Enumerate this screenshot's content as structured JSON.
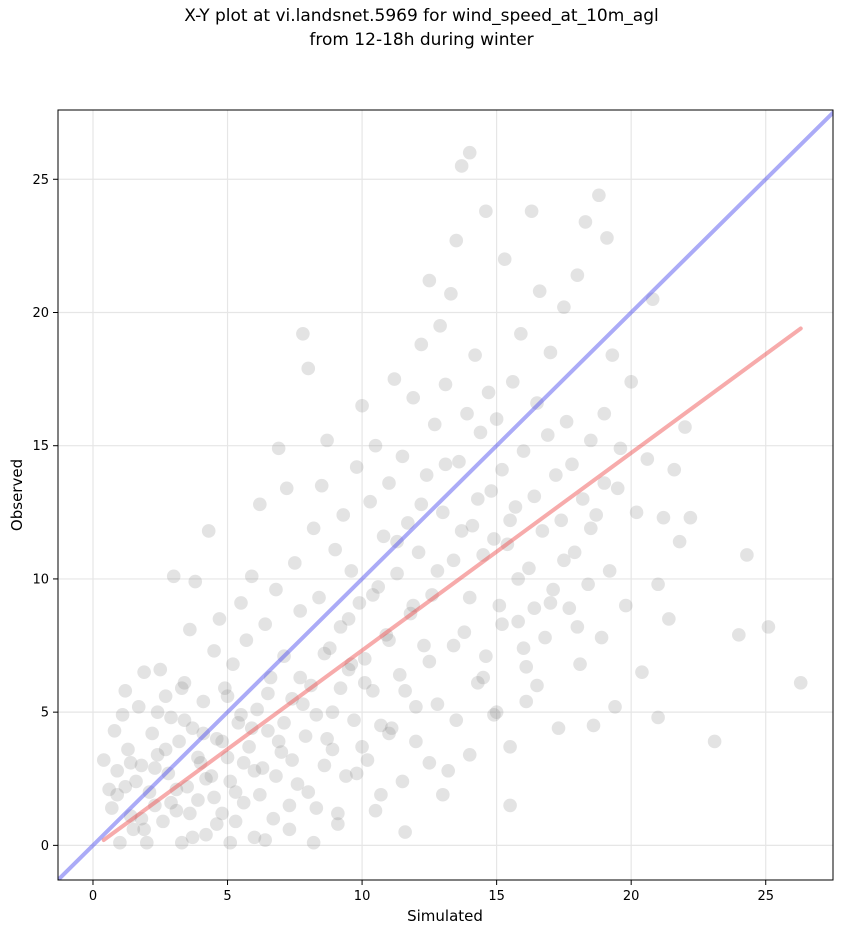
{
  "figure": {
    "title_line1": "X-Y plot at vi.landsnet.5969 for wind_speed_at_10m_agl",
    "title_line2": "from 12-18h during winter"
  },
  "chart_data": {
    "type": "scatter",
    "title": "X-Y plot at vi.landsnet.5969 for wind_speed_at_10m_agl from 12-18h during winter",
    "xlabel": "Simulated",
    "ylabel": "Observed",
    "xlim": [
      -1.3,
      27.5
    ],
    "ylim": [
      -1.3,
      27.6
    ],
    "xticks": [
      0,
      5,
      10,
      15,
      20,
      25
    ],
    "yticks": [
      0,
      5,
      10,
      15,
      20,
      25
    ],
    "grid": true,
    "point_color": "#808080",
    "point_opacity": 0.22,
    "points": [
      [
        0.4,
        3.2
      ],
      [
        0.6,
        2.1
      ],
      [
        0.7,
        1.4
      ],
      [
        0.8,
        4.3
      ],
      [
        0.9,
        2.8
      ],
      [
        1.0,
        0.1
      ],
      [
        1.1,
        4.9
      ],
      [
        1.2,
        5.8
      ],
      [
        1.3,
        3.6
      ],
      [
        1.4,
        1.1
      ],
      [
        1.5,
        0.6
      ],
      [
        1.6,
        2.4
      ],
      [
        1.7,
        5.2
      ],
      [
        1.8,
        3.0
      ],
      [
        1.9,
        6.5
      ],
      [
        2.0,
        0.1
      ],
      [
        2.1,
        2.0
      ],
      [
        2.2,
        4.2
      ],
      [
        2.3,
        1.5
      ],
      [
        2.4,
        3.4
      ],
      [
        2.5,
        6.6
      ],
      [
        2.6,
        0.9
      ],
      [
        2.7,
        5.6
      ],
      [
        2.8,
        2.7
      ],
      [
        2.9,
        4.8
      ],
      [
        3.0,
        10.1
      ],
      [
        3.1,
        1.3
      ],
      [
        3.2,
        3.9
      ],
      [
        3.3,
        0.1
      ],
      [
        3.4,
        6.1
      ],
      [
        3.5,
        2.2
      ],
      [
        3.6,
        8.1
      ],
      [
        3.7,
        4.4
      ],
      [
        3.8,
        9.9
      ],
      [
        3.9,
        1.7
      ],
      [
        4.0,
        3.1
      ],
      [
        4.1,
        5.4
      ],
      [
        4.2,
        0.4
      ],
      [
        4.3,
        11.8
      ],
      [
        4.4,
        2.6
      ],
      [
        4.5,
        7.3
      ],
      [
        4.6,
        4.0
      ],
      [
        4.7,
        8.5
      ],
      [
        4.8,
        1.2
      ],
      [
        4.9,
        5.9
      ],
      [
        5.0,
        3.3
      ],
      [
        5.1,
        0.1
      ],
      [
        5.2,
        6.8
      ],
      [
        5.3,
        2.0
      ],
      [
        5.4,
        4.6
      ],
      [
        5.5,
        9.1
      ],
      [
        5.6,
        1.6
      ],
      [
        5.7,
        7.7
      ],
      [
        5.8,
        3.7
      ],
      [
        5.9,
        10.1
      ],
      [
        6.0,
        0.3
      ],
      [
        6.1,
        5.1
      ],
      [
        6.2,
        12.8
      ],
      [
        6.3,
        2.9
      ],
      [
        6.4,
        8.3
      ],
      [
        6.5,
        4.3
      ],
      [
        6.6,
        6.3
      ],
      [
        6.7,
        1.0
      ],
      [
        6.8,
        9.6
      ],
      [
        6.9,
        14.9
      ],
      [
        7.0,
        3.5
      ],
      [
        7.1,
        7.1
      ],
      [
        7.2,
        13.4
      ],
      [
        7.3,
        0.6
      ],
      [
        7.4,
        5.5
      ],
      [
        7.5,
        10.6
      ],
      [
        7.6,
        2.3
      ],
      [
        7.7,
        8.8
      ],
      [
        7.8,
        19.2
      ],
      [
        7.9,
        4.1
      ],
      [
        8.0,
        17.9
      ],
      [
        8.1,
        6.0
      ],
      [
        8.2,
        11.9
      ],
      [
        8.3,
        1.4
      ],
      [
        8.4,
        9.3
      ],
      [
        8.5,
        13.5
      ],
      [
        8.6,
        3.0
      ],
      [
        8.7,
        15.2
      ],
      [
        8.8,
        7.4
      ],
      [
        8.9,
        5.0
      ],
      [
        9.0,
        11.1
      ],
      [
        9.1,
        0.8
      ],
      [
        9.2,
        8.2
      ],
      [
        9.3,
        12.4
      ],
      [
        9.4,
        2.6
      ],
      [
        9.5,
        6.6
      ],
      [
        9.6,
        10.3
      ],
      [
        9.7,
        4.7
      ],
      [
        9.8,
        14.2
      ],
      [
        9.9,
        9.1
      ],
      [
        10.0,
        16.5
      ],
      [
        10.1,
        7.0
      ],
      [
        10.2,
        3.2
      ],
      [
        10.3,
        12.9
      ],
      [
        10.4,
        5.8
      ],
      [
        10.5,
        15.0
      ],
      [
        10.6,
        9.7
      ],
      [
        10.7,
        1.9
      ],
      [
        10.8,
        11.6
      ],
      [
        10.9,
        7.9
      ],
      [
        11.0,
        13.6
      ],
      [
        11.1,
        4.4
      ],
      [
        11.2,
        17.5
      ],
      [
        11.3,
        10.2
      ],
      [
        11.4,
        6.4
      ],
      [
        11.5,
        14.6
      ],
      [
        11.6,
        0.5
      ],
      [
        11.7,
        12.1
      ],
      [
        11.8,
        8.7
      ],
      [
        11.9,
        16.8
      ],
      [
        12.0,
        3.9
      ],
      [
        12.1,
        11.0
      ],
      [
        12.2,
        18.8
      ],
      [
        12.3,
        7.5
      ],
      [
        12.4,
        13.9
      ],
      [
        12.5,
        21.2
      ],
      [
        12.6,
        9.4
      ],
      [
        12.7,
        15.8
      ],
      [
        12.8,
        5.3
      ],
      [
        12.9,
        19.5
      ],
      [
        13.0,
        12.5
      ],
      [
        13.1,
        17.3
      ],
      [
        13.2,
        2.8
      ],
      [
        13.3,
        20.7
      ],
      [
        13.4,
        10.7
      ],
      [
        13.5,
        22.7
      ],
      [
        13.6,
        14.4
      ],
      [
        13.7,
        25.5
      ],
      [
        13.8,
        8.0
      ],
      [
        13.9,
        16.2
      ],
      [
        14.0,
        26.0
      ],
      [
        14.1,
        12.0
      ],
      [
        14.2,
        18.4
      ],
      [
        14.3,
        6.1
      ],
      [
        14.4,
        15.5
      ],
      [
        14.5,
        10.9
      ],
      [
        14.6,
        23.8
      ],
      [
        14.7,
        17.0
      ],
      [
        14.8,
        13.3
      ],
      [
        14.9,
        4.9
      ],
      [
        15.0,
        16.0
      ],
      [
        15.1,
        9.0
      ],
      [
        15.2,
        14.1
      ],
      [
        15.3,
        22.0
      ],
      [
        15.4,
        11.3
      ],
      [
        15.5,
        1.5
      ],
      [
        15.6,
        17.4
      ],
      [
        15.7,
        12.7
      ],
      [
        15.8,
        8.4
      ],
      [
        15.9,
        19.2
      ],
      [
        16.0,
        14.8
      ],
      [
        16.1,
        6.7
      ],
      [
        16.2,
        10.4
      ],
      [
        16.3,
        23.8
      ],
      [
        16.4,
        13.1
      ],
      [
        16.5,
        16.6
      ],
      [
        16.6,
        20.8
      ],
      [
        16.7,
        11.8
      ],
      [
        16.8,
        7.8
      ],
      [
        16.9,
        15.4
      ],
      [
        17.0,
        18.5
      ],
      [
        17.1,
        9.6
      ],
      [
        17.2,
        13.9
      ],
      [
        17.3,
        4.4
      ],
      [
        17.4,
        12.2
      ],
      [
        17.5,
        20.2
      ],
      [
        17.6,
        15.9
      ],
      [
        17.7,
        8.9
      ],
      [
        17.8,
        14.3
      ],
      [
        17.9,
        11.0
      ],
      [
        18.0,
        21.4
      ],
      [
        18.1,
        6.8
      ],
      [
        18.2,
        13.0
      ],
      [
        18.3,
        23.4
      ],
      [
        18.4,
        9.8
      ],
      [
        18.5,
        15.2
      ],
      [
        18.6,
        4.5
      ],
      [
        18.7,
        12.4
      ],
      [
        18.8,
        24.4
      ],
      [
        18.9,
        7.8
      ],
      [
        19.0,
        13.6
      ],
      [
        19.1,
        22.8
      ],
      [
        19.2,
        10.3
      ],
      [
        19.3,
        18.4
      ],
      [
        19.4,
        5.2
      ],
      [
        19.6,
        14.9
      ],
      [
        19.8,
        9.0
      ],
      [
        20.0,
        17.4
      ],
      [
        20.2,
        12.5
      ],
      [
        20.4,
        6.5
      ],
      [
        20.6,
        14.5
      ],
      [
        20.8,
        20.5
      ],
      [
        21.0,
        9.8
      ],
      [
        21.0,
        4.8
      ],
      [
        21.2,
        12.3
      ],
      [
        21.4,
        8.5
      ],
      [
        21.6,
        14.1
      ],
      [
        21.8,
        11.4
      ],
      [
        22.0,
        15.7
      ],
      [
        22.2,
        12.3
      ],
      [
        23.1,
        3.9
      ],
      [
        24.0,
        7.9
      ],
      [
        24.3,
        10.9
      ],
      [
        25.1,
        8.2
      ],
      [
        26.3,
        6.1
      ],
      [
        1.2,
        2.2
      ],
      [
        1.8,
        1.0
      ],
      [
        2.3,
        2.9
      ],
      [
        2.7,
        3.6
      ],
      [
        3.1,
        2.1
      ],
      [
        3.4,
        4.7
      ],
      [
        3.6,
        1.2
      ],
      [
        3.9,
        3.3
      ],
      [
        4.2,
        2.5
      ],
      [
        4.5,
        1.8
      ],
      [
        4.8,
        3.9
      ],
      [
        5.0,
        5.6
      ],
      [
        5.3,
        0.9
      ],
      [
        5.6,
        3.1
      ],
      [
        5.9,
        4.4
      ],
      [
        6.2,
        1.9
      ],
      [
        6.5,
        5.7
      ],
      [
        6.8,
        2.6
      ],
      [
        7.1,
        4.6
      ],
      [
        7.4,
        3.2
      ],
      [
        7.7,
        6.3
      ],
      [
        8.0,
        2.0
      ],
      [
        8.3,
        4.9
      ],
      [
        8.6,
        7.2
      ],
      [
        8.9,
        3.6
      ],
      [
        9.2,
        5.9
      ],
      [
        9.5,
        8.5
      ],
      [
        9.8,
        2.7
      ],
      [
        10.1,
        6.1
      ],
      [
        10.4,
        9.4
      ],
      [
        10.7,
        4.5
      ],
      [
        11.0,
        7.7
      ],
      [
        11.3,
        11.4
      ],
      [
        11.6,
        5.8
      ],
      [
        11.9,
        9.0
      ],
      [
        12.2,
        12.8
      ],
      [
        12.5,
        6.9
      ],
      [
        12.8,
        10.3
      ],
      [
        13.1,
        14.3
      ],
      [
        13.4,
        7.5
      ],
      [
        13.7,
        11.8
      ],
      [
        14.0,
        9.3
      ],
      [
        14.3,
        13.0
      ],
      [
        14.6,
        7.1
      ],
      [
        14.9,
        11.5
      ],
      [
        15.2,
        8.3
      ],
      [
        15.5,
        12.2
      ],
      [
        15.8,
        10.0
      ],
      [
        16.1,
        5.4
      ],
      [
        16.4,
        8.9
      ],
      [
        0.9,
        1.9
      ],
      [
        1.4,
        3.1
      ],
      [
        1.9,
        0.6
      ],
      [
        2.4,
        5.0
      ],
      [
        2.9,
        1.6
      ],
      [
        3.3,
        5.9
      ],
      [
        3.7,
        0.3
      ],
      [
        4.1,
        4.2
      ],
      [
        4.6,
        0.8
      ],
      [
        5.1,
        2.4
      ],
      [
        5.5,
        4.9
      ],
      [
        6.0,
        2.8
      ],
      [
        6.4,
        0.2
      ],
      [
        6.9,
        3.9
      ],
      [
        7.3,
        1.5
      ],
      [
        7.8,
        5.3
      ],
      [
        8.2,
        0.1
      ],
      [
        8.7,
        4.0
      ],
      [
        9.1,
        1.2
      ],
      [
        9.6,
        6.8
      ],
      [
        10.0,
        3.7
      ],
      [
        10.5,
        1.3
      ],
      [
        11.0,
        4.2
      ],
      [
        11.5,
        2.4
      ],
      [
        12.0,
        5.2
      ],
      [
        12.5,
        3.1
      ],
      [
        13.0,
        1.9
      ],
      [
        13.5,
        4.7
      ],
      [
        14.0,
        3.4
      ],
      [
        14.5,
        6.3
      ],
      [
        15.0,
        5.0
      ],
      [
        15.5,
        3.7
      ],
      [
        16.0,
        7.4
      ],
      [
        16.5,
        6.0
      ],
      [
        17.0,
        9.1
      ],
      [
        17.5,
        10.7
      ],
      [
        18.0,
        8.2
      ],
      [
        18.5,
        11.9
      ],
      [
        19.0,
        16.2
      ],
      [
        19.5,
        13.4
      ]
    ],
    "lines": [
      {
        "color": "#4444ee",
        "opacity": 0.45,
        "points": [
          [
            -1.3,
            -1.3
          ],
          [
            27.5,
            27.5
          ]
        ]
      },
      {
        "color": "#ee4444",
        "opacity": 0.45,
        "points": [
          [
            0.4,
            0.2
          ],
          [
            26.3,
            19.4
          ]
        ]
      }
    ]
  }
}
